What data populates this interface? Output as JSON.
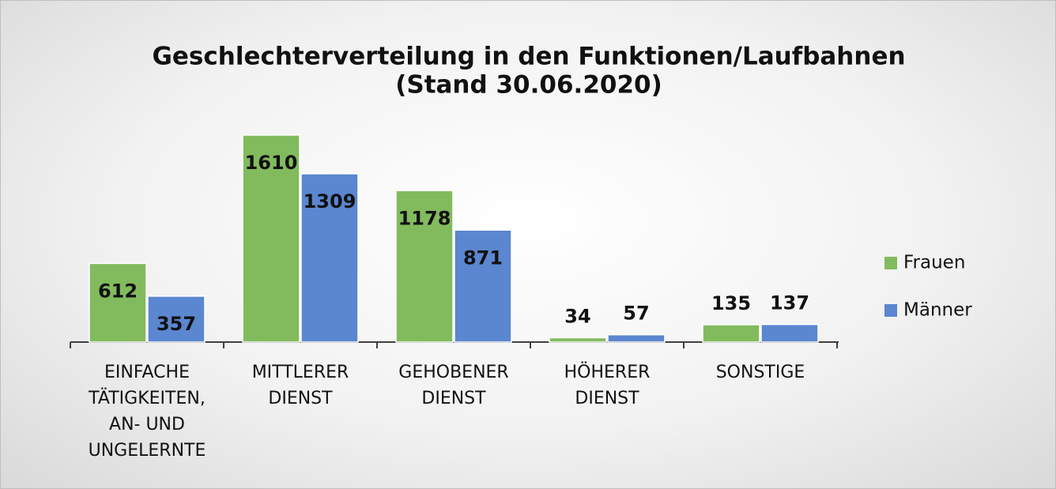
{
  "chart_data": {
    "type": "bar",
    "title": "Geschlechterverteilung in den Funktionen/Laufbahnen",
    "subtitle": "(Stand 30.06.2020)",
    "categories": [
      "EINFACHE TÄTIGKEITEN, AN- UND UNGELERNTE",
      "MITTLERER DIENST",
      "GEHOBENER DIENST",
      "HÖHERER DIENST",
      "SONSTIGE"
    ],
    "series": [
      {
        "name": "Frauen",
        "color": "#82bb5e",
        "values": [
          612,
          1610,
          1178,
          34,
          135
        ]
      },
      {
        "name": "Männer",
        "color": "#5b86d0",
        "values": [
          357,
          1309,
          871,
          57,
          137
        ]
      }
    ],
    "legend": "right"
  }
}
